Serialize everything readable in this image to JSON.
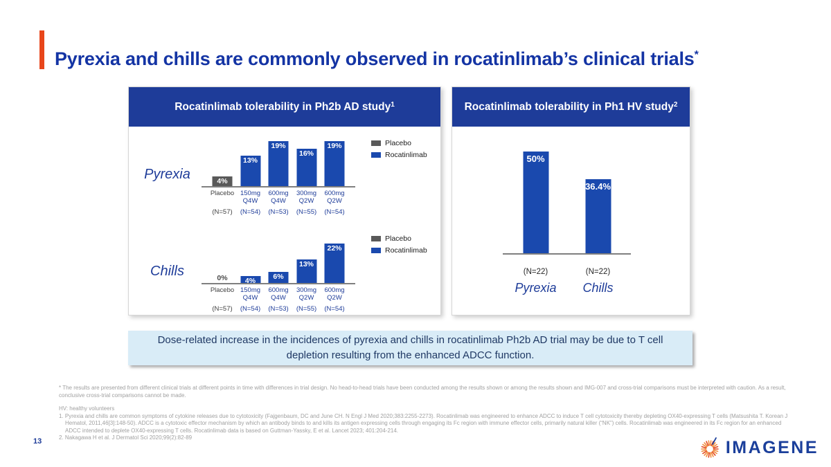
{
  "slide": {
    "title": "Pyrexia and chills are commonly observed in rocatinlimab’s clinical trials",
    "title_superscript": "*",
    "page_number": "13",
    "logo_text": "IMAGENE"
  },
  "panels": [
    {
      "header": "Rocatinlimab tolerability in Ph2b AD study",
      "header_superscript": "1"
    },
    {
      "header": "Rocatinlimab tolerability in Ph1 HV study",
      "header_superscript": "2"
    }
  ],
  "callout": "Dose-related increase in the incidences of pyrexia and chills in rocatinlimab Ph2b AD trial may be due to T cell depletion resulting from the enhanced ADCC function.",
  "footnotes": {
    "asterisk": "* The results are presented from different clinical trials at different points in time with differences in trial design. No head-to-head trials have been conducted among the results shown or among the results shown and IMG-007 and cross-trial comparisons must be interpreted with caution. As a result, conclusive cross-trial comparisons cannot be made.",
    "hv": "HV: healthy volunteers",
    "ref1": "1. Pyrexia and chills are common symptoms of cytokine releases due to cytotoxicity (Fajgenbaum, DC and June CH. N Engl J Med 2020;383:2255-2273). Rocatinlimab was engineered to enhance ADCC to induce T cell cytotoxicity thereby depleting OX40-expressing T cells (Matsushita T. Korean J Hematol, 2011,46[3]:148-50). ADCC is a cytotoxic effector mechanism by which an antibody binds to and kills its antigen expressing cells through engaging its Fc region with immune effector cells, primarily natural killer (“NK”) cells. Rocatinlimab was engineered in its Fc region for an enhanced ADCC intended to deplete OX40-expressing T cells. Rocatinlimab data is based on Guttman-Yassky, E et al. Lancet 2023; 401:204-214.",
    "ref2": "2. Nakagawa H et al. J Dermatol Sci 2020;99(2):82-89"
  },
  "colors": {
    "accent_orange": "#E8461B",
    "title_blue": "#1434A4",
    "header_bg": "#1E3C99",
    "bar_blue": "#1A49AE",
    "placebo_gray": "#595959",
    "axis_gray": "#7F7F7F",
    "callout_bg": "#D9ECF7",
    "callout_text": "#1F3864",
    "footnote_gray": "#A0A0A0",
    "logo_blue": "#1B3F9B",
    "logo_orange": "#F08A3C",
    "logo_red": "#E3471D"
  },
  "chart_data": [
    {
      "type": "bar",
      "title": "Pyrexia — Rocatinlimab tolerability in Ph2b AD study",
      "row_label": "Pyrexia",
      "ylim": [
        0,
        20
      ],
      "grid": false,
      "legend": [
        "Placebo",
        "Rocatinlimab"
      ],
      "legend_position": "right",
      "bars": [
        {
          "category": [
            "Placebo"
          ],
          "n": "(N=57)",
          "series": "Placebo",
          "value": 4,
          "label": "4%"
        },
        {
          "category": [
            "150mg",
            "Q4W"
          ],
          "n": "(N=54)",
          "series": "Rocatinlimab",
          "value": 13,
          "label": "13%"
        },
        {
          "category": [
            "600mg",
            "Q4W"
          ],
          "n": "(N=53)",
          "series": "Rocatinlimab",
          "value": 19,
          "label": "19%"
        },
        {
          "category": [
            "300mg",
            "Q2W"
          ],
          "n": "(N=55)",
          "series": "Rocatinlimab",
          "value": 16,
          "label": "16%"
        },
        {
          "category": [
            "600mg",
            "Q2W"
          ],
          "n": "(N=54)",
          "series": "Rocatinlimab",
          "value": 19,
          "label": "19%"
        }
      ]
    },
    {
      "type": "bar",
      "title": "Chills — Rocatinlimab tolerability in Ph2b AD study",
      "row_label": "Chills",
      "ylim": [
        0,
        24
      ],
      "grid": false,
      "legend": [
        "Placebo",
        "Rocatinlimab"
      ],
      "legend_position": "right",
      "bars": [
        {
          "category": [
            "Placebo"
          ],
          "n": "(N=57)",
          "series": "Placebo",
          "value": 0,
          "label": "0%"
        },
        {
          "category": [
            "150mg",
            "Q4W"
          ],
          "n": "(N=54)",
          "series": "Rocatinlimab",
          "value": 4,
          "label": "4%"
        },
        {
          "category": [
            "600mg",
            "Q4W"
          ],
          "n": "(N=53)",
          "series": "Rocatinlimab",
          "value": 6,
          "label": "6%"
        },
        {
          "category": [
            "300mg",
            "Q2W"
          ],
          "n": "(N=55)",
          "series": "Rocatinlimab",
          "value": 13,
          "label": "13%"
        },
        {
          "category": [
            "600mg",
            "Q2W"
          ],
          "n": "(N=54)",
          "series": "Rocatinlimab",
          "value": 22,
          "label": "22%"
        }
      ]
    },
    {
      "type": "bar",
      "title": "Rocatinlimab tolerability in Ph1 HV study",
      "ylim": [
        0,
        55
      ],
      "grid": false,
      "legend": null,
      "bars": [
        {
          "category": [
            "Pyrexia"
          ],
          "n": "(N=22)",
          "series": "Rocatinlimab",
          "value": 50,
          "label": "50%"
        },
        {
          "category": [
            "Chills"
          ],
          "n": "(N=22)",
          "series": "Rocatinlimab",
          "value": 36.4,
          "label": "36.4%"
        }
      ]
    }
  ]
}
